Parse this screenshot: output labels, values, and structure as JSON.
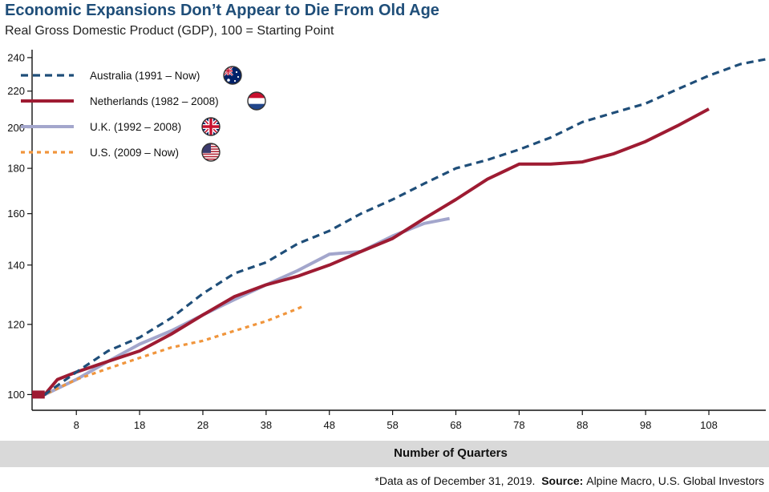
{
  "header": {
    "title": "Economic Expansions Don’t Appear to Die From Old Age",
    "subtitle": "Real Gross Domestic Product (GDP), 100 = Starting Point"
  },
  "footer": {
    "note": "*Data as of December 31, 2019.",
    "source_label": "Source:",
    "source_text": "Alpine Macro, U.S. Global Investors"
  },
  "chart_data": {
    "type": "line",
    "title": "Economic Expansions Don’t Appear to Die From Old Age",
    "subtitle": "Real Gross Domestic Product (GDP), 100 = Starting Point",
    "xlabel": "Number of Quarters",
    "ylabel": "",
    "xlim": [
      1,
      117
    ],
    "ylim": [
      96,
      245
    ],
    "y_scale": "log",
    "x_ticks": [
      8,
      18,
      28,
      38,
      48,
      58,
      68,
      78,
      88,
      98,
      108
    ],
    "y_ticks": [
      100,
      120,
      140,
      160,
      180,
      200,
      220,
      240
    ],
    "grid": false,
    "legend_position": "top-left",
    "series": [
      {
        "name": "Australia (1991 – Now)",
        "color": "#1f4e79",
        "style": "dashed",
        "flag": "australia-flag",
        "points": [
          [
            1,
            100
          ],
          [
            3,
            100
          ],
          [
            8,
            106
          ],
          [
            13,
            112
          ],
          [
            18,
            116
          ],
          [
            23,
            122
          ],
          [
            28,
            130
          ],
          [
            33,
            137
          ],
          [
            38,
            141
          ],
          [
            43,
            148
          ],
          [
            48,
            153
          ],
          [
            53,
            160
          ],
          [
            58,
            166
          ],
          [
            63,
            173
          ],
          [
            68,
            180
          ],
          [
            73,
            184
          ],
          [
            78,
            189
          ],
          [
            83,
            195
          ],
          [
            88,
            203
          ],
          [
            93,
            208
          ],
          [
            98,
            213
          ],
          [
            103,
            221
          ],
          [
            108,
            229
          ],
          [
            113,
            236
          ],
          [
            117,
            239
          ]
        ]
      },
      {
        "name": "Netherlands (1982 – 2008)",
        "color": "#9e1b32",
        "style": "solid",
        "flag": "netherlands-flag",
        "points": [
          [
            1,
            100
          ],
          [
            3,
            100
          ],
          [
            5,
            104
          ],
          [
            8,
            106
          ],
          [
            13,
            109
          ],
          [
            18,
            112
          ],
          [
            23,
            117
          ],
          [
            28,
            123
          ],
          [
            33,
            129
          ],
          [
            38,
            133
          ],
          [
            43,
            136
          ],
          [
            48,
            140
          ],
          [
            53,
            145
          ],
          [
            58,
            150
          ],
          [
            63,
            158
          ],
          [
            68,
            166
          ],
          [
            73,
            175
          ],
          [
            78,
            182
          ],
          [
            83,
            182
          ],
          [
            88,
            183
          ],
          [
            93,
            187
          ],
          [
            98,
            193
          ],
          [
            103,
            201
          ],
          [
            108,
            210
          ]
        ]
      },
      {
        "name": "U.K. (1992 – 2008)",
        "color": "#a3a6cc",
        "style": "solid",
        "flag": "uk-flag",
        "points": [
          [
            1,
            100
          ],
          [
            3,
            100
          ],
          [
            8,
            104
          ],
          [
            13,
            109
          ],
          [
            18,
            114
          ],
          [
            23,
            118
          ],
          [
            28,
            123
          ],
          [
            33,
            128
          ],
          [
            38,
            133
          ],
          [
            43,
            138
          ],
          [
            48,
            144
          ],
          [
            53,
            145
          ],
          [
            58,
            151
          ],
          [
            63,
            156
          ],
          [
            67,
            158
          ]
        ]
      },
      {
        "name": "U.S. (2009 – Now)",
        "color": "#f0953c",
        "style": "dotted",
        "flag": "us-flag",
        "points": [
          [
            1,
            100
          ],
          [
            3,
            100
          ],
          [
            8,
            104
          ],
          [
            13,
            107
          ],
          [
            18,
            110
          ],
          [
            23,
            113
          ],
          [
            28,
            115
          ],
          [
            33,
            118
          ],
          [
            38,
            121
          ],
          [
            43,
            125
          ],
          [
            44,
            126
          ]
        ]
      }
    ]
  }
}
